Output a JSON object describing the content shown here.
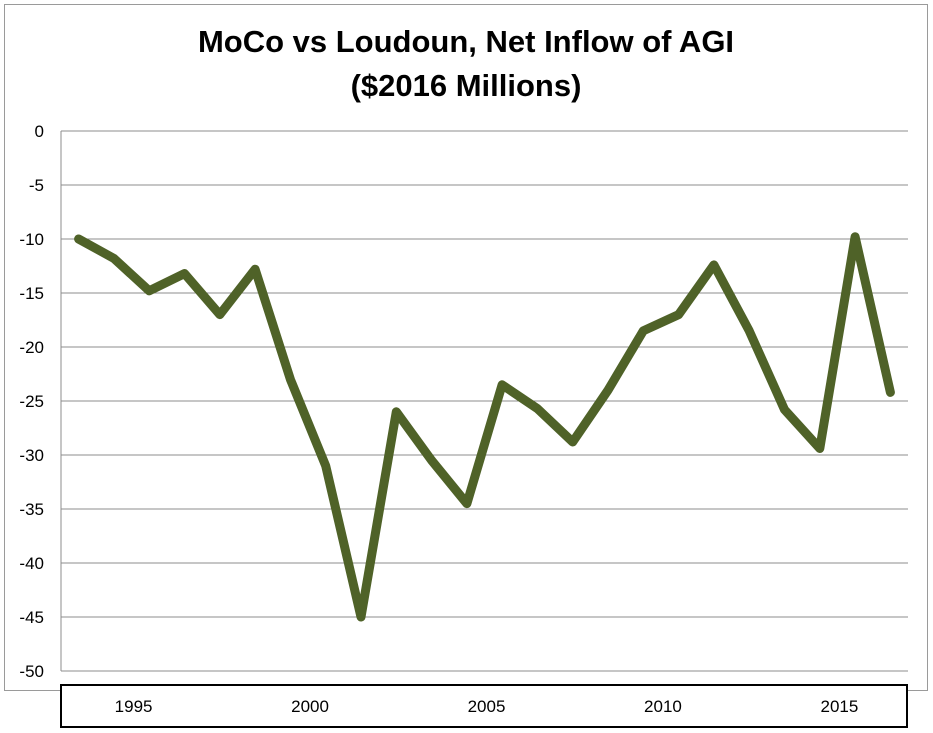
{
  "chart_data": {
    "type": "line",
    "title": "MoCo vs Loudoun, Net Inflow of AGI",
    "subtitle": "($2016 Millions)",
    "xlabel": "",
    "ylabel": "",
    "ylim": [
      -50,
      0
    ],
    "yticks": [
      0,
      -5,
      -10,
      -15,
      -20,
      -25,
      -30,
      -35,
      -40,
      -45,
      -50
    ],
    "xlim": [
      1993,
      2017
    ],
    "xticks": [
      1995,
      2000,
      2005,
      2010,
      2015
    ],
    "grid": true,
    "line_color": "#4f6228",
    "x": [
      1993.5,
      1994.5,
      1995.5,
      1996.5,
      1997.5,
      1998.5,
      1999.5,
      2000.5,
      2001.5,
      2002.5,
      2003.5,
      2004.5,
      2005.5,
      2006.5,
      2007.5,
      2008.5,
      2009.5,
      2010.5,
      2011.5,
      2012.5,
      2013.5,
      2014.5,
      2015.5,
      2016.5
    ],
    "series": [
      {
        "values": [
          -10.0,
          -11.8,
          -14.8,
          -13.2,
          -17.0,
          -12.8,
          -23.0,
          -31.0,
          -45.0,
          -26.0,
          -30.5,
          -34.5,
          -23.5,
          -25.7,
          -28.8,
          -24.0,
          -18.5,
          -17.0,
          -12.4,
          -18.5,
          -25.8,
          -29.4,
          -9.8,
          -24.2
        ]
      }
    ]
  }
}
